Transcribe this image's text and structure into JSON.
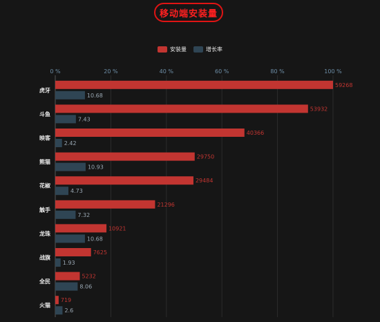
{
  "title": "移动端安装量",
  "colors": {
    "install": "#c23531",
    "growth": "#2f4554",
    "axis_text": "#6e8fa8",
    "grid": "#2c2c2c",
    "label_text": "#e8e8e8"
  },
  "legend": [
    {
      "name": "安装量",
      "color": "#c23531"
    },
    {
      "name": "增长率",
      "color": "#2f4554"
    }
  ],
  "chart_data": {
    "type": "bar",
    "orientation": "horizontal",
    "categories": [
      "虎牙",
      "斗鱼",
      "映客",
      "熊猫",
      "花椒",
      "触手",
      "龙珠",
      "战旗",
      "全民",
      "火猫"
    ],
    "series": [
      {
        "name": "安装量",
        "values": [
          59268,
          53932,
          40366,
          29750,
          29484,
          21296,
          10921,
          7625,
          5232,
          719
        ]
      },
      {
        "name": "增长率",
        "values": [
          10.68,
          7.43,
          2.42,
          10.93,
          4.73,
          7.32,
          10.68,
          1.93,
          8.06,
          2.6
        ]
      }
    ],
    "xaxis": {
      "position": "top",
      "ticks": [
        "0 %",
        "20 %",
        "40 %",
        "60 %",
        "80 %",
        "100 %"
      ],
      "range": [
        0,
        100
      ],
      "unit": "%"
    },
    "scale_max": 59268,
    "grid": true,
    "legend_position": "top-center"
  }
}
